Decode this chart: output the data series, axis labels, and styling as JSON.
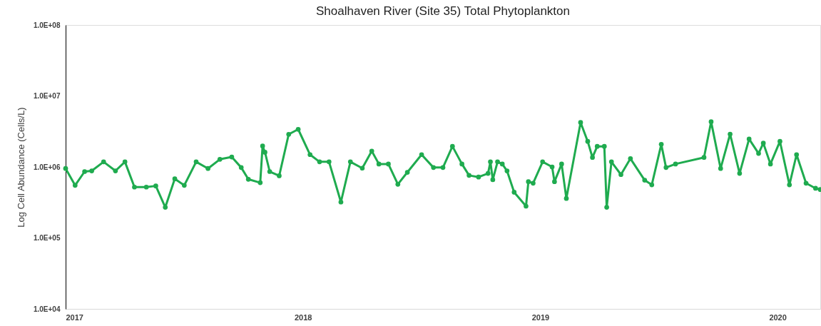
{
  "chart_data": {
    "type": "line",
    "title": "Shoalhaven River (Site 35) Total Phytoplankton",
    "ylabel": "Log Cell Abundance  (Cells/L)",
    "x": [
      2017.0,
      2017.04,
      2017.08,
      2017.11,
      2017.16,
      2017.21,
      2017.25,
      2017.29,
      2017.34,
      2017.38,
      2017.42,
      2017.46,
      2017.5,
      2017.55,
      2017.6,
      2017.65,
      2017.7,
      2017.74,
      2017.77,
      2017.82,
      2017.83,
      2017.84,
      2017.86,
      2017.9,
      2017.94,
      2017.98,
      2018.03,
      2018.07,
      2018.11,
      2018.16,
      2018.2,
      2018.25,
      2018.29,
      2018.32,
      2018.36,
      2018.4,
      2018.44,
      2018.5,
      2018.55,
      2018.59,
      2018.63,
      2018.67,
      2018.7,
      2018.74,
      2018.78,
      2018.79,
      2018.8,
      2018.82,
      2018.84,
      2018.86,
      2018.89,
      2018.94,
      2018.95,
      2018.97,
      2019.01,
      2019.05,
      2019.06,
      2019.09,
      2019.11,
      2019.17,
      2019.2,
      2019.22,
      2019.24,
      2019.27,
      2019.28,
      2019.3,
      2019.34,
      2019.38,
      2019.44,
      2019.47,
      2019.51,
      2019.53,
      2019.57,
      2019.69,
      2019.72,
      2019.76,
      2019.8,
      2019.84,
      2019.88,
      2019.92,
      2019.94,
      2019.97,
      2020.01,
      2020.05,
      2020.08,
      2020.12,
      2020.16,
      2020.18
    ],
    "series": [
      {
        "color": "#1fab4f",
        "values": [
          950000,
          550000,
          860000,
          880000,
          1180000,
          880000,
          1180000,
          520000,
          520000,
          540000,
          270000,
          680000,
          550000,
          1180000,
          950000,
          1280000,
          1380000,
          980000,
          670000,
          600000,
          1970000,
          1610000,
          860000,
          750000,
          2880000,
          3390000,
          1490000,
          1180000,
          1180000,
          320000,
          1180000,
          960000,
          1670000,
          1100000,
          1100000,
          570000,
          840000,
          1490000,
          980000,
          980000,
          1950000,
          1100000,
          760000,
          720000,
          810000,
          1180000,
          660000,
          1180000,
          1100000,
          880000,
          440000,
          280000,
          620000,
          590000,
          1180000,
          1000000,
          620000,
          1100000,
          360000,
          4230000,
          2290000,
          1360000,
          1950000,
          1950000,
          270000,
          1180000,
          780000,
          1310000,
          650000,
          560000,
          2080000,
          980000,
          1100000,
          1360000,
          4330000,
          950000,
          2900000,
          810000,
          2470000,
          1550000,
          2160000,
          1100000,
          2290000,
          560000,
          1490000,
          590000,
          500000,
          480000
        ]
      }
    ],
    "xlim": [
      2017,
      2020.18
    ],
    "xticks": [
      2017,
      2018,
      2019,
      2020
    ],
    "ylim": [
      10000,
      100000000
    ],
    "yticks": [
      {
        "value": 10000,
        "label": "1.0E+04"
      },
      {
        "value": 100000,
        "label": "1.0E+05"
      },
      {
        "value": 1000000,
        "label": "1.0E+06"
      },
      {
        "value": 10000000,
        "label": "1.0E+07"
      },
      {
        "value": 100000000,
        "label": "1.0E+08"
      }
    ],
    "log": "y",
    "grid": false,
    "marker": "circle",
    "line_style": "solid"
  }
}
